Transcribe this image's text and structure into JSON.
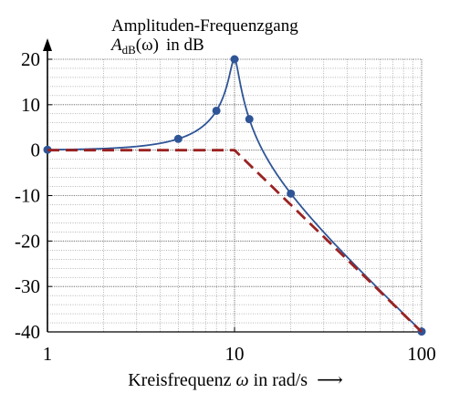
{
  "chart_data": {
    "type": "line",
    "title": "Amplituden-Frequenzgang",
    "ylabel": {
      "symbol": "A",
      "subscript": "dB",
      "argument": "(ω)",
      "unit_text": "in dB"
    },
    "xlabel": {
      "prefix": "Kreisfrequenz ",
      "symbol": "ω",
      "suffix": " in rad/s",
      "arrow": "⟶"
    },
    "x_scale": "log",
    "xlim": [
      1,
      100
    ],
    "ylim": [
      -40,
      20
    ],
    "x_ticks": [
      {
        "value": 1,
        "label": "1"
      },
      {
        "value": 10,
        "label": "10"
      },
      {
        "value": 100,
        "label": "100"
      }
    ],
    "y_ticks": [
      {
        "value": 20,
        "label": "20"
      },
      {
        "value": 10,
        "label": "10"
      },
      {
        "value": 0,
        "label": "0"
      },
      {
        "value": -10,
        "label": "-10"
      },
      {
        "value": -20,
        "label": "-20"
      },
      {
        "value": -30,
        "label": "-30"
      },
      {
        "value": -40,
        "label": "-40"
      }
    ],
    "grid": true,
    "series": [
      {
        "style": "solid",
        "color": "#2f5597",
        "markers": true,
        "markers_x": [
          1,
          5,
          8,
          10,
          12,
          20,
          100
        ],
        "model": {
          "type": "second_order_lowpass",
          "gain": 1,
          "omega0": 10,
          "zeta": 0.05
        }
      },
      {
        "style": "dashed",
        "color": "#9b2222",
        "markers": false,
        "x": [
          1,
          10,
          100
        ],
        "y": [
          0,
          0,
          -40
        ]
      }
    ]
  }
}
